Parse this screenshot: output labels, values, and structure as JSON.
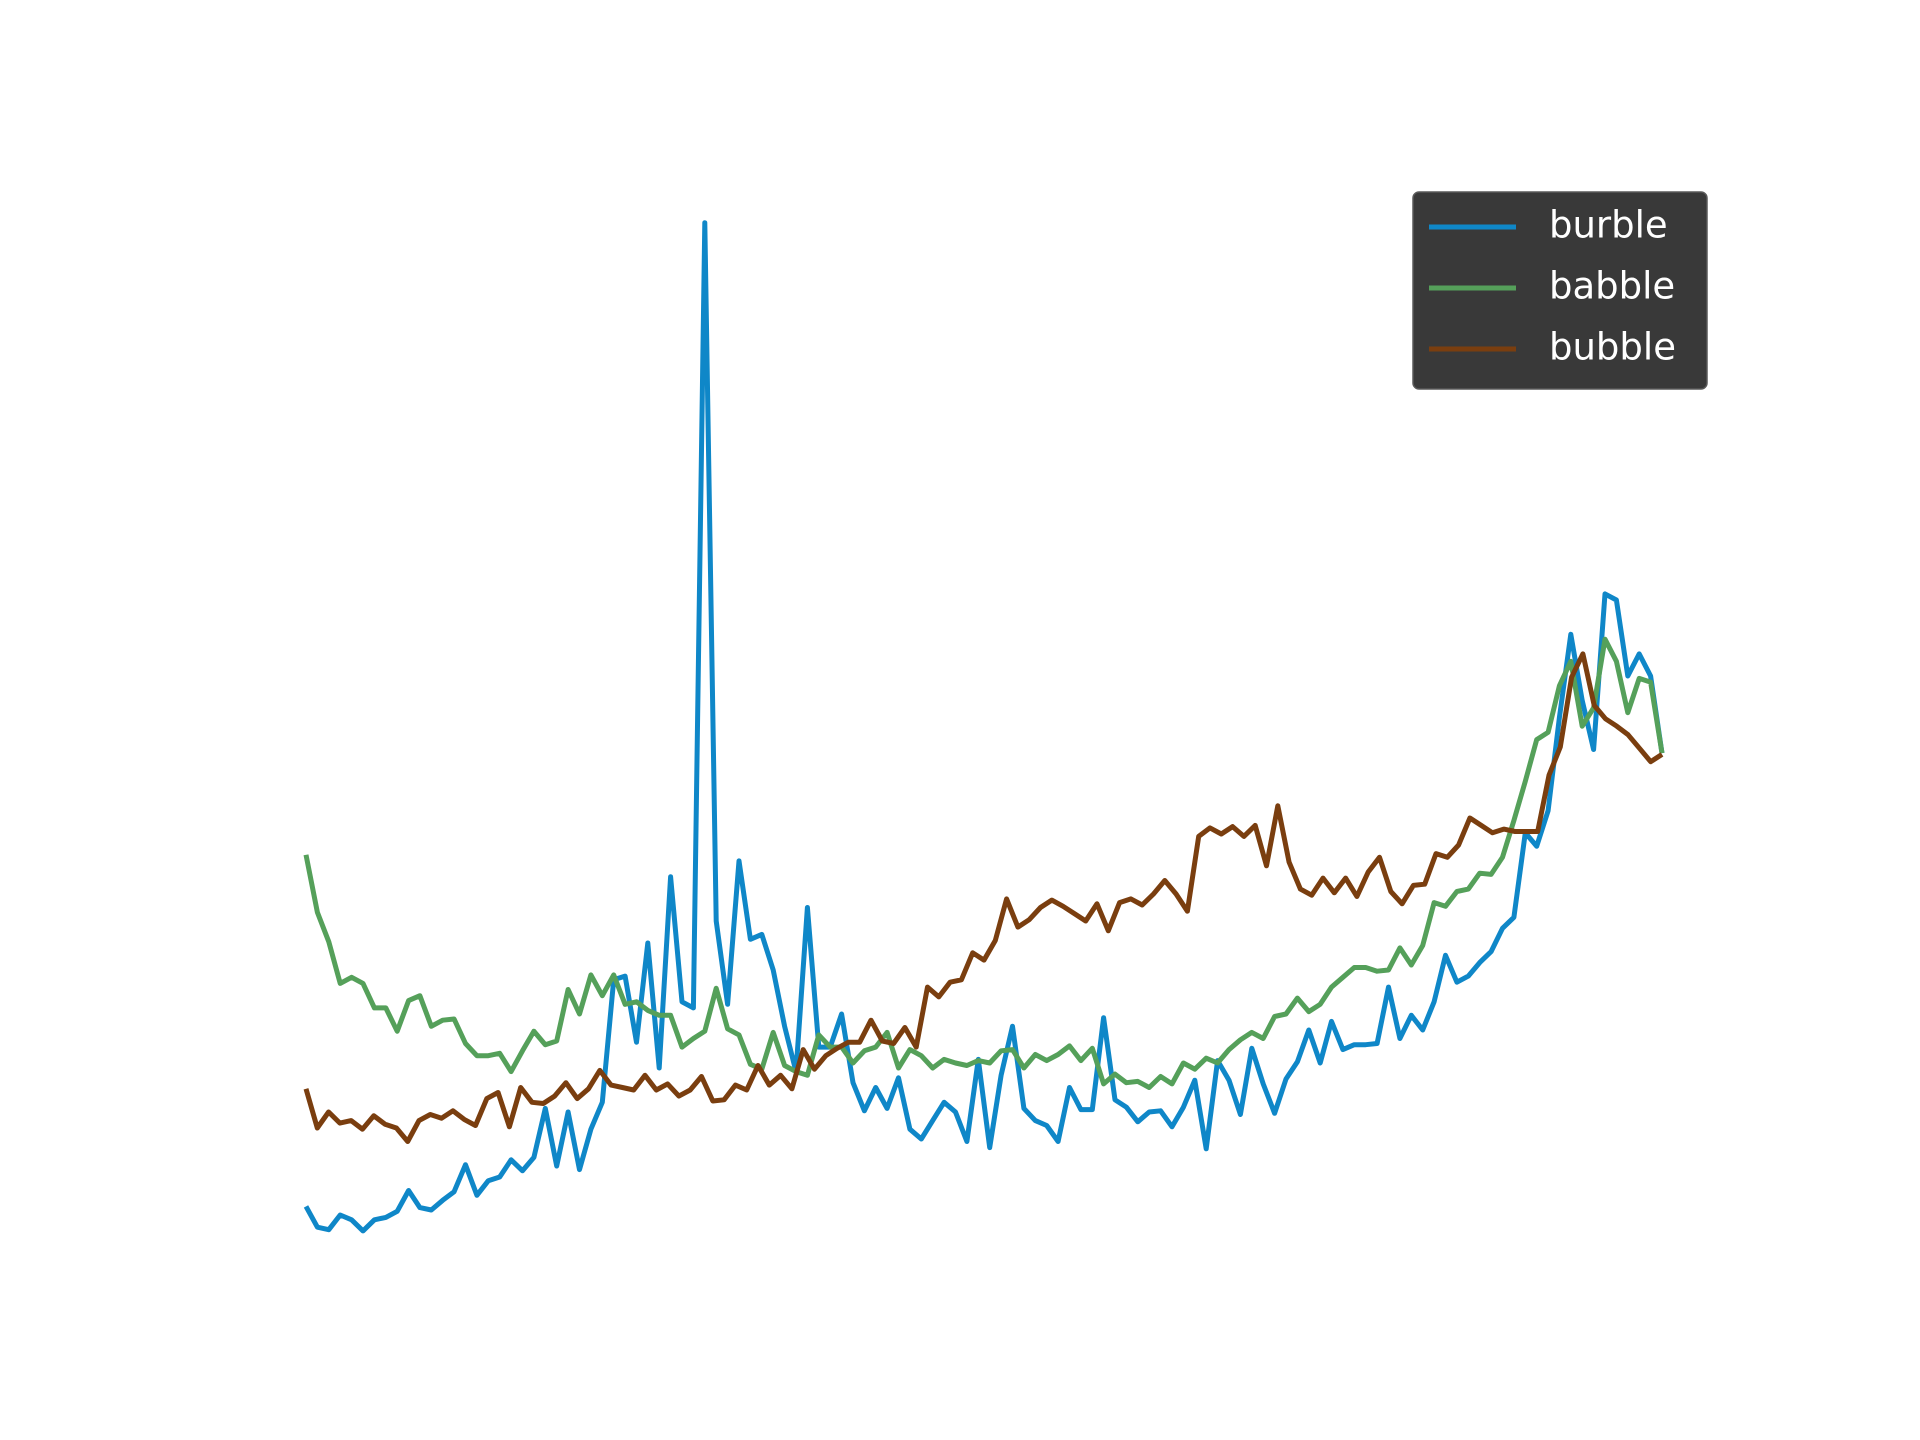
{
  "chart_data": {
    "type": "line",
    "legend": "upper right",
    "ylim": [
      0,
      1000
    ],
    "series": [
      {
        "name": "burble",
        "color": "#0f87c8",
        "values": [
          65,
          48,
          46,
          58,
          54,
          45,
          54,
          56,
          61,
          78,
          64,
          62,
          70,
          77,
          99,
          74,
          86,
          89,
          103,
          94,
          105,
          145,
          98,
          142,
          95,
          128,
          150,
          250,
          253,
          199,
          280,
          178,
          334,
          232,
          227,
          868,
          298,
          230,
          347,
          283,
          287,
          258,
          212,
          175,
          309,
          195,
          195,
          222,
          166,
          143,
          162,
          145,
          170,
          128,
          120,
          135,
          150,
          142,
          118,
          185,
          113,
          172,
          212,
          145,
          135,
          131,
          118,
          162,
          144,
          144,
          219,
          152,
          146,
          134,
          142,
          143,
          130,
          146,
          168,
          112,
          184,
          168,
          140,
          194,
          165,
          141,
          169,
          183,
          209,
          182,
          216,
          193,
          197,
          197,
          198,
          244,
          202,
          221,
          209,
          232,
          270,
          248,
          253,
          264,
          273,
          292,
          301,
          370,
          359,
          388,
          464,
          532,
          478,
          438,
          565,
          560,
          498,
          516,
          498,
          435
        ]
      },
      {
        "name": "babble",
        "color": "#55a05a",
        "values": [
          352,
          305,
          281,
          247,
          252,
          247,
          227,
          227,
          208,
          233,
          237,
          212,
          217,
          218,
          198,
          188,
          188,
          190,
          175,
          192,
          208,
          197,
          200,
          242,
          222,
          254,
          237,
          254,
          230,
          232,
          225,
          221,
          221,
          195,
          202,
          208,
          243,
          210,
          205,
          181,
          177,
          207,
          180,
          175,
          172,
          205,
          195,
          195,
          182,
          192,
          195,
          207,
          178,
          193,
          188,
          178,
          185,
          182,
          180,
          184,
          182,
          192,
          193,
          178,
          189,
          184,
          189,
          196,
          184,
          194,
          165,
          173,
          166,
          167,
          162,
          171,
          165,
          182,
          177,
          186,
          182,
          193,
          201,
          207,
          202,
          220,
          222,
          235,
          224,
          230,
          244,
          252,
          260,
          260,
          257,
          258,
          276,
          262,
          278,
          313,
          310,
          322,
          324,
          337,
          336,
          350,
          380,
          412,
          446,
          452,
          490,
          510,
          457,
          472,
          528,
          510,
          468,
          496,
          493,
          435
        ]
      },
      {
        "name": "bubble",
        "color": "#7a3e0f",
        "values": [
          161,
          129,
          142,
          133,
          135,
          128,
          139,
          132,
          129,
          118,
          135,
          140,
          137,
          143,
          136,
          131,
          153,
          158,
          130,
          162,
          150,
          149,
          155,
          166,
          153,
          161,
          176,
          164,
          162,
          160,
          172,
          160,
          165,
          155,
          160,
          171,
          151,
          152,
          164,
          160,
          180,
          164,
          172,
          161,
          193,
          177,
          188,
          194,
          199,
          199,
          217,
          200,
          198,
          211,
          195,
          244,
          236,
          248,
          250,
          272,
          266,
          282,
          316,
          293,
          299,
          309,
          315,
          310,
          304,
          298,
          312,
          290,
          313,
          316,
          311,
          320,
          331,
          320,
          306,
          367,
          374,
          369,
          375,
          367,
          376,
          343,
          392,
          346,
          324,
          319,
          333,
          321,
          333,
          318,
          338,
          350,
          322,
          312,
          327,
          328,
          353,
          350,
          360,
          382,
          376,
          370,
          373,
          371,
          371,
          371,
          417,
          440,
          497,
          516,
          474,
          463,
          457,
          450,
          439,
          428,
          434
        ]
      }
    ]
  }
}
